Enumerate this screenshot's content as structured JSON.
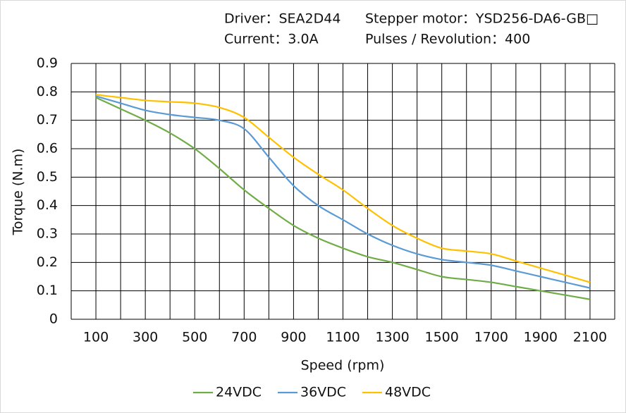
{
  "chart_data": {
    "type": "line",
    "header": [
      "Driver：SEA2D44",
      "Stepper motor：YSD256-DA6-GB□",
      "Current：3.0A",
      "Pulses / Revolution：400"
    ],
    "x_label": "Speed  (rpm)",
    "y_label": "Torque (N.m)",
    "x": [
      100,
      200,
      300,
      400,
      500,
      600,
      700,
      800,
      900,
      1000,
      1100,
      1200,
      1300,
      1400,
      1500,
      1600,
      1700,
      1800,
      1900,
      2000,
      2100
    ],
    "series": [
      {
        "name": "24VDC",
        "color": "#70ad47",
        "values": [
          0.78,
          0.74,
          0.7,
          0.655,
          0.6,
          0.53,
          0.455,
          0.39,
          0.33,
          0.285,
          0.25,
          0.22,
          0.2,
          0.175,
          0.15,
          0.14,
          0.13,
          0.115,
          0.1,
          0.085,
          0.07
        ]
      },
      {
        "name": "36VDC",
        "color": "#5b9bd5",
        "values": [
          0.785,
          0.76,
          0.735,
          0.72,
          0.71,
          0.7,
          0.67,
          0.57,
          0.47,
          0.4,
          0.35,
          0.3,
          0.26,
          0.23,
          0.21,
          0.2,
          0.19,
          0.17,
          0.15,
          0.13,
          0.11
        ]
      },
      {
        "name": "48VDC",
        "color": "#ffc000",
        "values": [
          0.79,
          0.78,
          0.77,
          0.765,
          0.76,
          0.745,
          0.71,
          0.64,
          0.57,
          0.51,
          0.455,
          0.39,
          0.33,
          0.285,
          0.25,
          0.24,
          0.23,
          0.205,
          0.18,
          0.155,
          0.13
        ]
      }
    ],
    "xlim": [
      0,
      2200
    ],
    "xticks": [
      100,
      300,
      500,
      700,
      900,
      1100,
      1300,
      1500,
      1700,
      1900,
      2100
    ],
    "xgrid": [
      0,
      100,
      200,
      300,
      400,
      500,
      600,
      700,
      800,
      900,
      1000,
      1100,
      1200,
      1300,
      1400,
      1500,
      1600,
      1700,
      1800,
      1900,
      2000,
      2100,
      2200
    ],
    "ylim": [
      0,
      0.9
    ],
    "yticks": [
      0,
      0.1,
      0.2,
      0.3,
      0.4,
      0.5,
      0.6,
      0.7,
      0.8,
      0.9
    ],
    "grid": true
  }
}
